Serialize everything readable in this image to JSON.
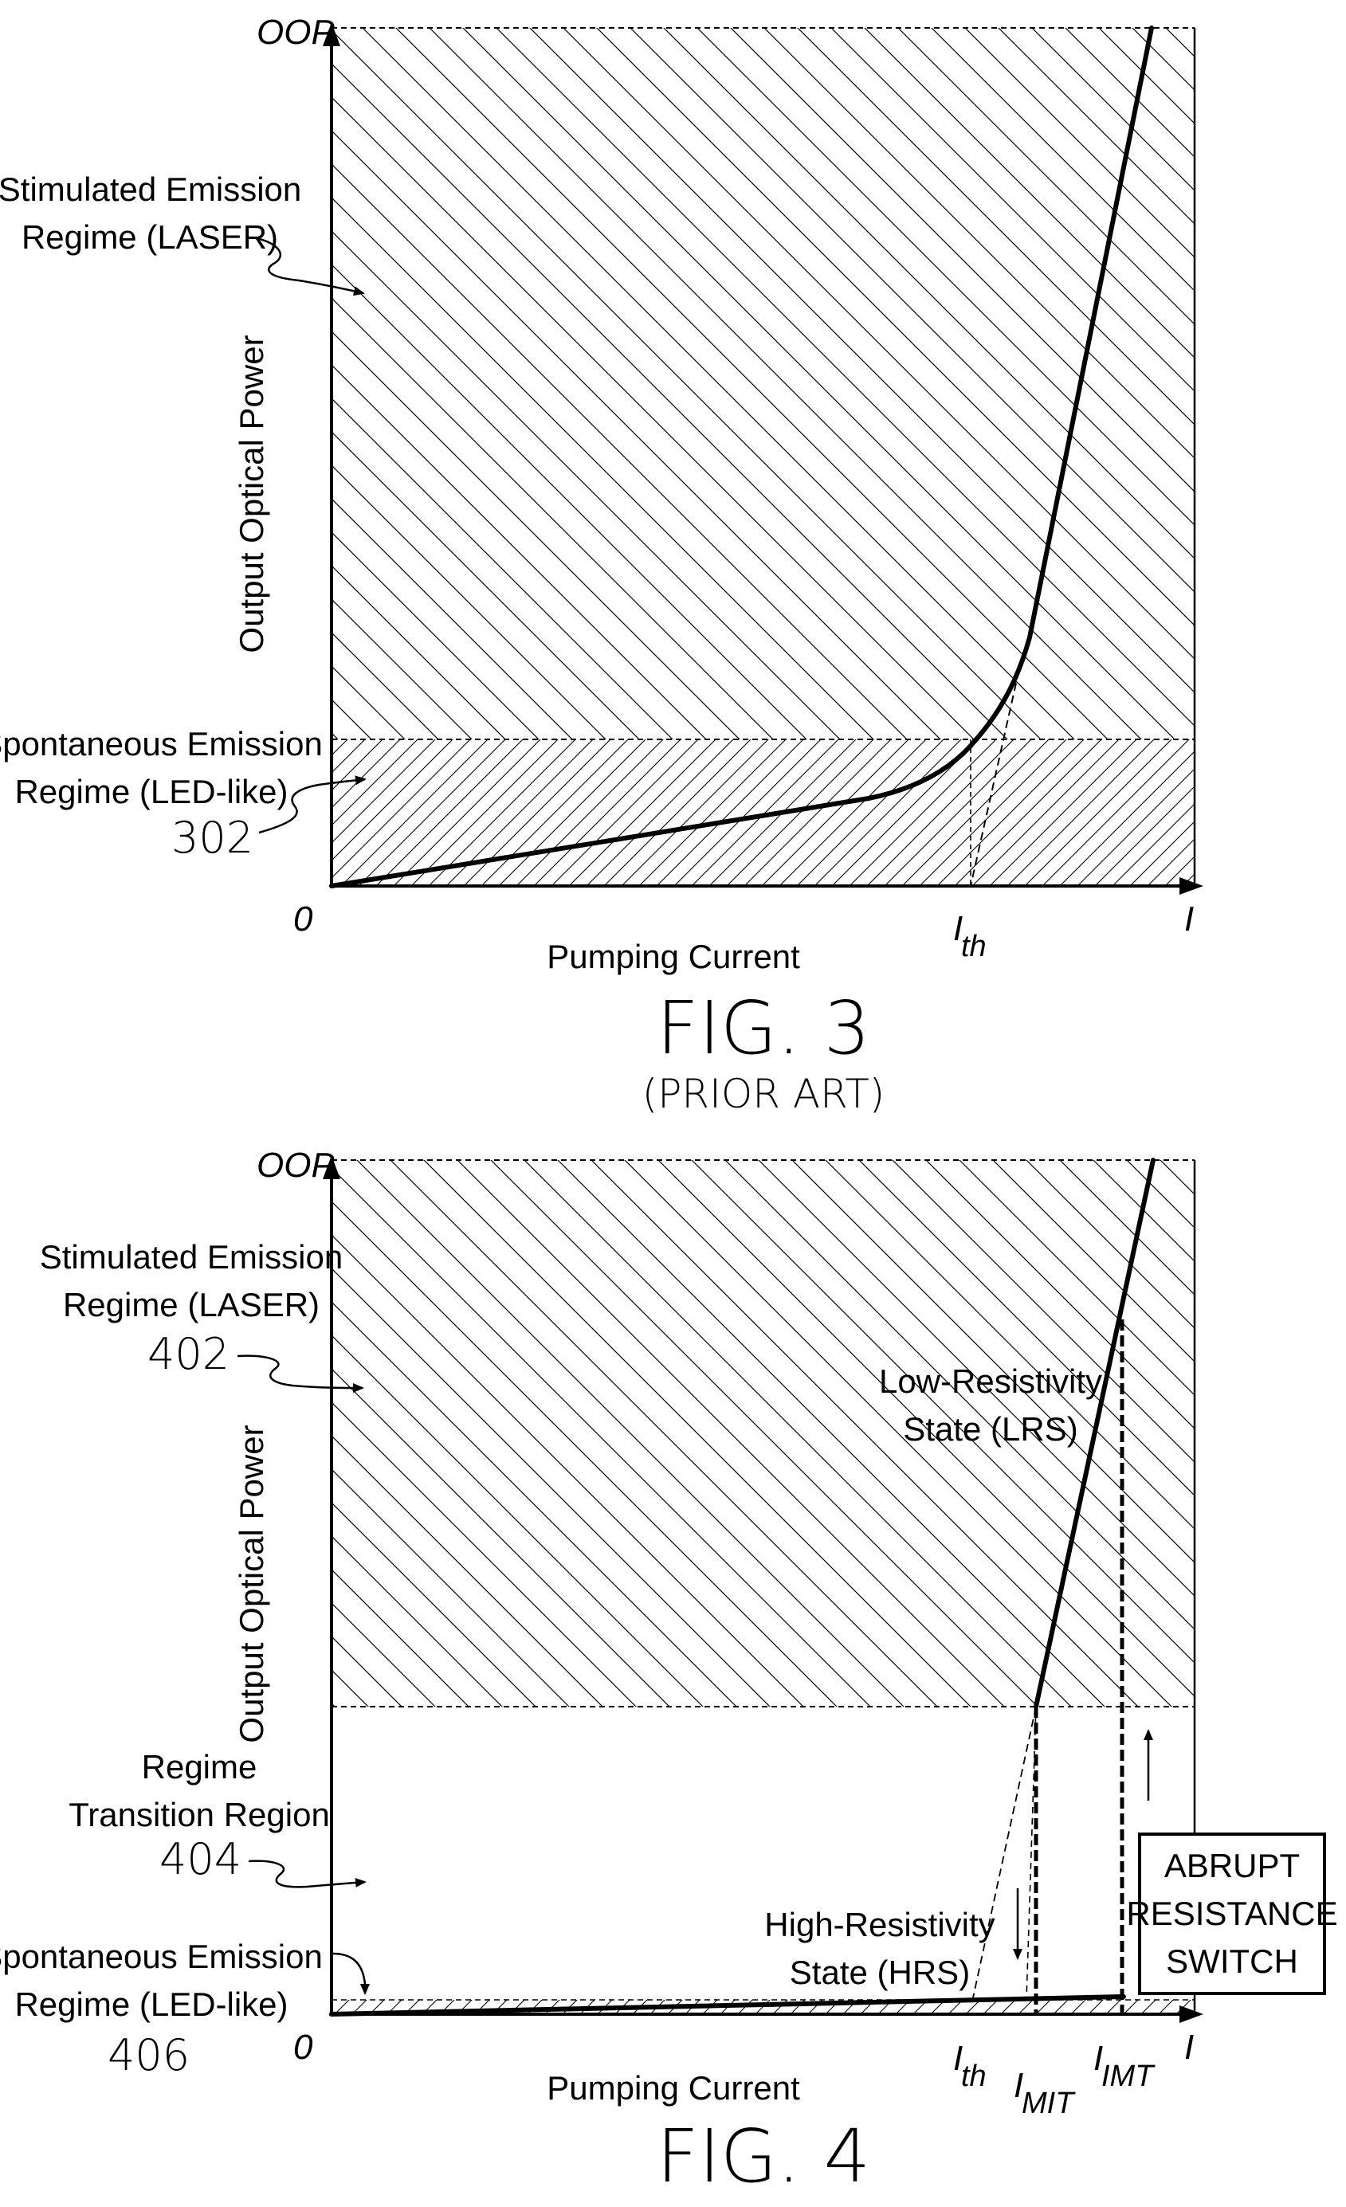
{
  "fig3": {
    "caption": "FIG. 3",
    "subcaption": "(PRIOR ART)",
    "y_axis": {
      "label": "Output Optical Power",
      "top_tick": "OOP"
    },
    "x_axis": {
      "label": "Pumping Current",
      "origin_tick": "0",
      "end_tick": "I",
      "threshold_tick_main": "I",
      "threshold_tick_sub": "th"
    },
    "regions": {
      "stimulated": {
        "line1": "Stimulated Emission",
        "line2": "Regime (LASER)"
      },
      "spontaneous": {
        "line1": "Spontaneous Emission",
        "line2": "Regime (LED-like)",
        "ref": "302"
      }
    }
  },
  "fig4": {
    "caption": "FIG. 4",
    "y_axis": {
      "label": "Output Optical Power",
      "top_tick": "OOP"
    },
    "x_axis": {
      "label": "Pumping Current",
      "origin_tick": "0",
      "end_tick": "I",
      "ticks": [
        {
          "main": "I",
          "sub": "th"
        },
        {
          "main": "I",
          "sub": "MIT"
        },
        {
          "main": "I",
          "sub": "IMT"
        }
      ]
    },
    "regions": {
      "stimulated": {
        "line1": "Stimulated Emission",
        "line2": "Regime (LASER)",
        "ref": "402"
      },
      "transition": {
        "line1": "Regime",
        "line2": "Transition Region",
        "ref": "404"
      },
      "spontaneous": {
        "line1": "Spontaneous Emission",
        "line2": "Regime (LED-like)",
        "ref": "406"
      }
    },
    "curve_labels": {
      "lrs": {
        "line1": "Low-Resistivity",
        "line2": "State (LRS)"
      },
      "hrs": {
        "line1": "High-Resistivity",
        "line2": "State (HRS)"
      }
    },
    "switch_box": {
      "line1": "ABRUPT",
      "line2": "RESISTANCE",
      "line3": "SWITCH"
    }
  }
}
